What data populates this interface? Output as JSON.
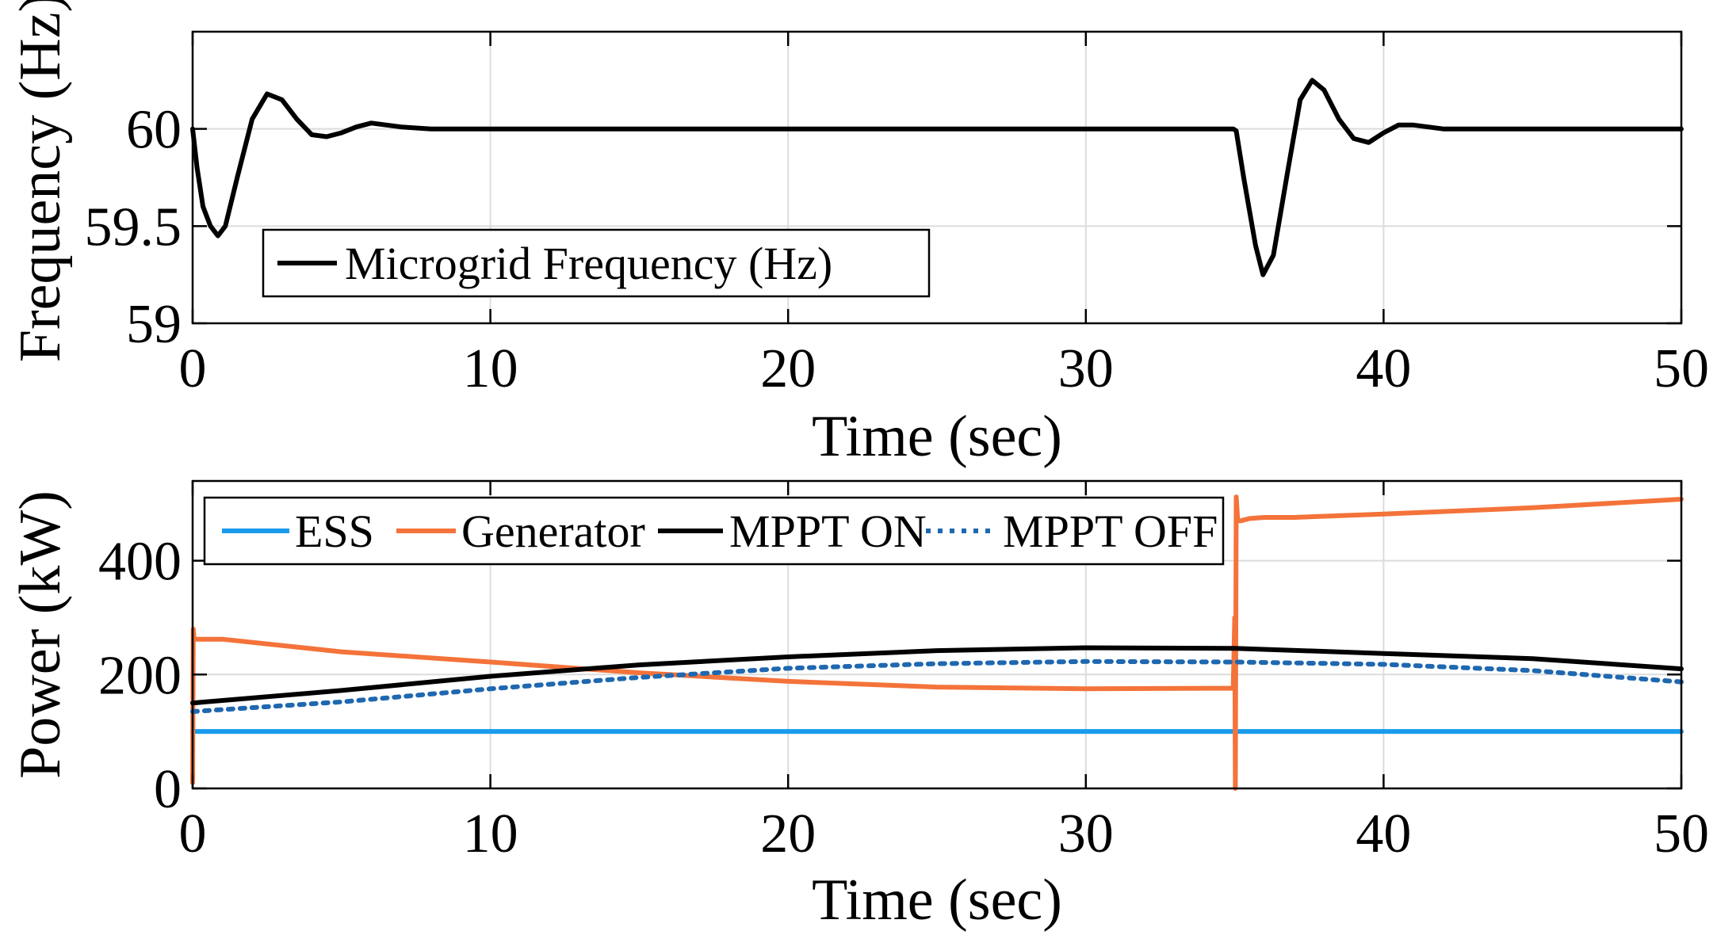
{
  "chart_data": [
    {
      "type": "line",
      "xlabel": "Time (sec)",
      "ylabel": "Frequency (Hz)",
      "xlim": [
        0,
        50
      ],
      "ylim": [
        59,
        60.5
      ],
      "xticks": [
        "0",
        "10",
        "20",
        "30",
        "40",
        "50"
      ],
      "yticks": [
        "59",
        "59.5",
        "60"
      ],
      "grid": true,
      "legend_position": "lower-left",
      "series": [
        {
          "name": "Microgrid Frequency (Hz)",
          "color": "#000000",
          "style": "solid",
          "x": [
            0,
            0.15,
            0.35,
            0.6,
            0.85,
            1.1,
            1.5,
            2.0,
            2.5,
            3.0,
            3.5,
            4.0,
            4.5,
            5.0,
            5.5,
            6.0,
            7.0,
            8.0,
            9.0,
            10.0,
            20.0,
            30.0,
            34.95,
            35.05,
            35.3,
            35.7,
            35.95,
            36.3,
            36.8,
            37.2,
            37.6,
            38.0,
            38.5,
            39.0,
            39.5,
            40.0,
            40.5,
            41.0,
            42.0,
            43.0,
            44.0,
            45.0,
            50.0
          ],
          "y": [
            60.0,
            59.8,
            59.6,
            59.5,
            59.45,
            59.5,
            59.75,
            60.05,
            60.18,
            60.15,
            60.05,
            59.97,
            59.96,
            59.98,
            60.01,
            60.03,
            60.01,
            60.0,
            60.0,
            60.0,
            60.0,
            60.0,
            60.0,
            59.99,
            59.75,
            59.4,
            59.25,
            59.35,
            59.8,
            60.15,
            60.25,
            60.2,
            60.05,
            59.95,
            59.93,
            59.98,
            60.02,
            60.02,
            60.0,
            60.0,
            60.0,
            60.0,
            60.0
          ]
        }
      ]
    },
    {
      "type": "line",
      "xlabel": "Time (sec)",
      "ylabel": "Power (kW)",
      "xlim": [
        0,
        50
      ],
      "ylim": [
        0,
        540
      ],
      "xticks": [
        "0",
        "10",
        "20",
        "30",
        "40",
        "50"
      ],
      "yticks": [
        "0",
        "200",
        "400"
      ],
      "grid": true,
      "legend_position": "top-left",
      "series": [
        {
          "name": "ESS",
          "color": "#1a9bec",
          "style": "solid",
          "x": [
            0,
            50
          ],
          "y": [
            100,
            100
          ]
        },
        {
          "name": "Generator",
          "color": "#f4733a",
          "style": "solid",
          "x": [
            0,
            0.02,
            0.05,
            1.0,
            5.0,
            10.0,
            15.0,
            20.0,
            25.0,
            30.0,
            34.95,
            35.0,
            35.02,
            35.05,
            35.1,
            35.2,
            35.5,
            36.0,
            37.0,
            40.0,
            45.0,
            50.0
          ],
          "y": [
            10,
            280,
            262,
            262,
            240,
            222,
            203,
            188,
            178,
            175,
            176,
            300,
            0,
            512,
            470,
            470,
            474,
            476,
            476,
            482,
            493,
            508
          ]
        },
        {
          "name": "MPPT ON",
          "color": "#000000",
          "style": "solid",
          "x": [
            0,
            5,
            10,
            15,
            20,
            25,
            30,
            35,
            40,
            45,
            50
          ],
          "y": [
            150,
            172,
            197,
            217,
            231,
            242,
            247,
            246,
            237,
            228,
            210
          ]
        },
        {
          "name": "MPPT OFF",
          "color": "#1f68b0",
          "style": "dotted",
          "x": [
            0,
            5,
            10,
            15,
            20,
            25,
            30,
            35,
            40,
            45,
            50
          ],
          "y": [
            135,
            152,
            175,
            195,
            211,
            219,
            223,
            222,
            218,
            207,
            187
          ]
        }
      ]
    }
  ]
}
